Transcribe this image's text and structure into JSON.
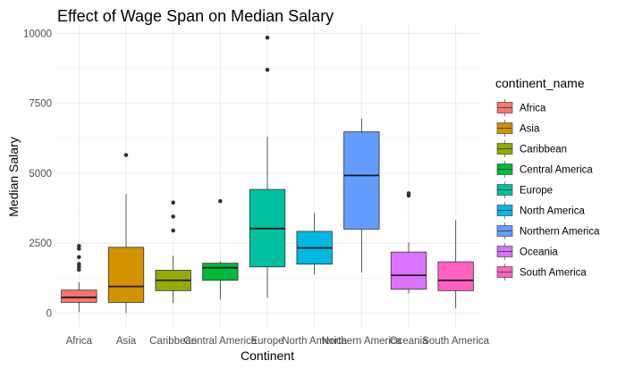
{
  "chart_data": {
    "type": "boxplot",
    "title": "Effect of Wage Span on Median Salary",
    "xlabel": "Continent",
    "ylabel": "Median Salary",
    "ylim": [
      -500,
      10300
    ],
    "yticks": [
      0,
      2500,
      5000,
      7500,
      10000
    ],
    "ytick_labels": [
      "0",
      "2500",
      "5000",
      "7500",
      "10000"
    ],
    "grid": true,
    "legend_title": "continent_name",
    "legend_position": "right",
    "categories": [
      "Africa",
      "Asia",
      "Caribbean",
      "Central America",
      "Europe",
      "North America",
      "Northern America",
      "Oceania",
      "South America"
    ],
    "series": [
      {
        "name": "Africa",
        "color": "#F8766D",
        "whisker_low": 30,
        "q1": 380,
        "median": 560,
        "q3": 820,
        "whisker_high": 1100,
        "outliers": [
          1550,
          1650,
          1750,
          2000,
          2300,
          2400
        ]
      },
      {
        "name": "Asia",
        "color": "#D39200",
        "whisker_low": 0,
        "q1": 380,
        "median": 950,
        "q3": 2350,
        "whisker_high": 4250,
        "outliers": [
          5650
        ]
      },
      {
        "name": "Caribbean",
        "color": "#93AA00",
        "whisker_low": 350,
        "q1": 800,
        "median": 1170,
        "q3": 1530,
        "whisker_high": 2050,
        "outliers": [
          2950,
          3450,
          3950
        ]
      },
      {
        "name": "Central America",
        "color": "#00BA38",
        "whisker_low": 480,
        "q1": 1170,
        "median": 1620,
        "q3": 1780,
        "whisker_high": 1850,
        "outliers": [
          4000
        ]
      },
      {
        "name": "Europe",
        "color": "#00C19F",
        "whisker_low": 550,
        "q1": 1650,
        "median": 3020,
        "q3": 4420,
        "whisker_high": 6300,
        "outliers": [
          8700,
          9850
        ]
      },
      {
        "name": "North America",
        "color": "#00B9E3",
        "whisker_low": 1380,
        "q1": 1750,
        "median": 2330,
        "q3": 2920,
        "whisker_high": 3580,
        "outliers": []
      },
      {
        "name": "Northern America",
        "color": "#619CFF",
        "whisker_low": 1450,
        "q1": 3000,
        "median": 4920,
        "q3": 6480,
        "whisker_high": 6950,
        "outliers": []
      },
      {
        "name": "Oceania",
        "color": "#DB72FB",
        "whisker_low": 700,
        "q1": 850,
        "median": 1350,
        "q3": 2180,
        "whisker_high": 2520,
        "outliers": [
          4200,
          4280
        ]
      },
      {
        "name": "South America",
        "color": "#FF61C3",
        "whisker_low": 170,
        "q1": 800,
        "median": 1170,
        "q3": 1830,
        "whisker_high": 3320,
        "outliers": []
      }
    ]
  }
}
